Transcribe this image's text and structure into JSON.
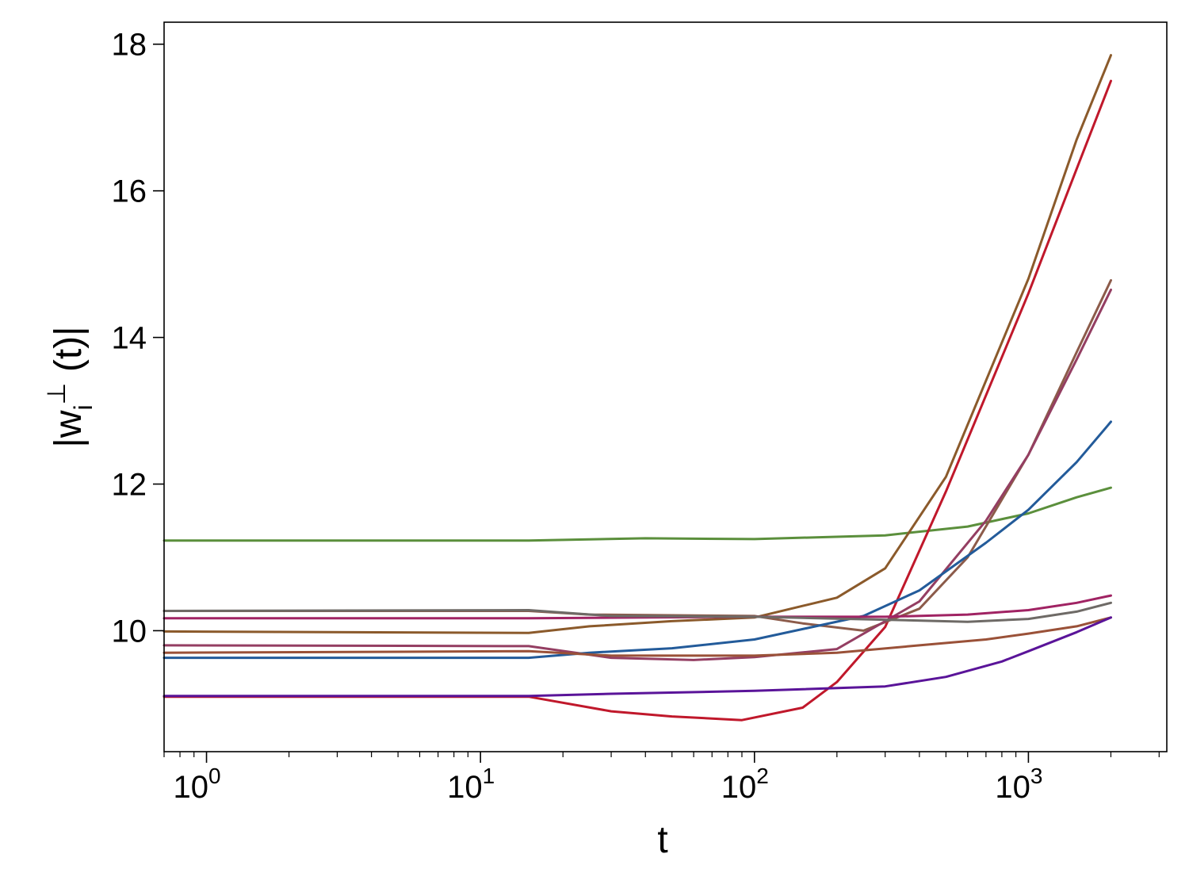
{
  "chart_data": {
    "type": "line",
    "title": "",
    "xlabel": "t",
    "ylabel": "|w_i^⊥ (t)|",
    "ylabel_main": "|w",
    "ylabel_sub": "i",
    "ylabel_sup": "⊥",
    "ylabel_rest": " (t)|",
    "x_scale": "log",
    "xlim": [
      0.7,
      3200
    ],
    "ylim": [
      8.35,
      18.3
    ],
    "grid": false,
    "legend": "none",
    "x_ticks": [
      {
        "value": 1,
        "base": "10",
        "exp": "0"
      },
      {
        "value": 10,
        "base": "10",
        "exp": "1"
      },
      {
        "value": 100,
        "base": "10",
        "exp": "2"
      },
      {
        "value": 1000,
        "base": "10",
        "exp": "3"
      }
    ],
    "y_ticks": [
      {
        "value": 10,
        "label": "10"
      },
      {
        "value": 12,
        "label": "12"
      },
      {
        "value": 14,
        "label": "14"
      },
      {
        "value": 16,
        "label": "16"
      },
      {
        "value": 18,
        "label": "18"
      }
    ],
    "series": [
      {
        "color": "#5b8f3c",
        "points": [
          [
            0.7,
            11.23
          ],
          [
            15,
            11.23
          ],
          [
            40,
            11.26
          ],
          [
            100,
            11.25
          ],
          [
            300,
            11.3
          ],
          [
            600,
            11.42
          ],
          [
            1000,
            11.6
          ],
          [
            1500,
            11.82
          ],
          [
            2000,
            11.95
          ]
        ]
      },
      {
        "color": "#8b5a2b",
        "points": [
          [
            0.7,
            9.99
          ],
          [
            15,
            9.97
          ],
          [
            25,
            10.06
          ],
          [
            50,
            10.13
          ],
          [
            100,
            10.18
          ],
          [
            200,
            10.45
          ],
          [
            300,
            10.85
          ],
          [
            500,
            12.1
          ],
          [
            1000,
            14.8
          ],
          [
            1500,
            16.7
          ],
          [
            2000,
            17.85
          ]
        ]
      },
      {
        "color": "#c0182b",
        "points": [
          [
            0.7,
            9.1
          ],
          [
            15,
            9.1
          ],
          [
            30,
            8.9
          ],
          [
            50,
            8.83
          ],
          [
            90,
            8.78
          ],
          [
            150,
            8.95
          ],
          [
            200,
            9.3
          ],
          [
            300,
            10.05
          ],
          [
            500,
            11.9
          ],
          [
            1000,
            14.6
          ],
          [
            1500,
            16.3
          ],
          [
            2000,
            17.5
          ]
        ]
      },
      {
        "color": "#8c5b4a",
        "points": [
          [
            0.7,
            10.27
          ],
          [
            15,
            10.27
          ],
          [
            25,
            10.22
          ],
          [
            100,
            10.2
          ],
          [
            150,
            10.1
          ],
          [
            250,
            10.0
          ],
          [
            400,
            10.3
          ],
          [
            600,
            11.0
          ],
          [
            1000,
            12.4
          ],
          [
            1500,
            13.8
          ],
          [
            2000,
            14.78
          ]
        ]
      },
      {
        "color": "#943e62",
        "points": [
          [
            0.7,
            9.8
          ],
          [
            15,
            9.79
          ],
          [
            30,
            9.63
          ],
          [
            60,
            9.6
          ],
          [
            100,
            9.64
          ],
          [
            200,
            9.75
          ],
          [
            400,
            10.4
          ],
          [
            700,
            11.5
          ],
          [
            1000,
            12.4
          ],
          [
            1500,
            13.7
          ],
          [
            2000,
            14.65
          ]
        ]
      },
      {
        "color": "#235b9a",
        "points": [
          [
            0.7,
            9.63
          ],
          [
            15,
            9.63
          ],
          [
            25,
            9.7
          ],
          [
            50,
            9.76
          ],
          [
            100,
            9.88
          ],
          [
            250,
            10.2
          ],
          [
            400,
            10.55
          ],
          [
            700,
            11.2
          ],
          [
            1000,
            11.65
          ],
          [
            1500,
            12.3
          ],
          [
            2000,
            12.85
          ]
        ]
      },
      {
        "color": "#a02363",
        "points": [
          [
            0.7,
            10.17
          ],
          [
            15,
            10.17
          ],
          [
            100,
            10.19
          ],
          [
            300,
            10.19
          ],
          [
            600,
            10.22
          ],
          [
            1000,
            10.28
          ],
          [
            1500,
            10.38
          ],
          [
            2000,
            10.48
          ]
        ]
      },
      {
        "color": "#6e6a66",
        "points": [
          [
            0.7,
            10.27
          ],
          [
            15,
            10.28
          ],
          [
            30,
            10.2
          ],
          [
            100,
            10.19
          ],
          [
            300,
            10.15
          ],
          [
            600,
            10.12
          ],
          [
            1000,
            10.16
          ],
          [
            1500,
            10.26
          ],
          [
            2000,
            10.38
          ]
        ]
      },
      {
        "color": "#9a5138",
        "points": [
          [
            0.7,
            9.7
          ],
          [
            15,
            9.72
          ],
          [
            30,
            9.66
          ],
          [
            100,
            9.66
          ],
          [
            200,
            9.7
          ],
          [
            400,
            9.8
          ],
          [
            700,
            9.88
          ],
          [
            1000,
            9.96
          ],
          [
            1500,
            10.06
          ],
          [
            2000,
            10.18
          ]
        ]
      },
      {
        "color": "#5a1499",
        "points": [
          [
            0.7,
            9.11
          ],
          [
            15,
            9.11
          ],
          [
            30,
            9.14
          ],
          [
            100,
            9.18
          ],
          [
            300,
            9.24
          ],
          [
            500,
            9.37
          ],
          [
            800,
            9.58
          ],
          [
            1000,
            9.72
          ],
          [
            1500,
            9.98
          ],
          [
            2000,
            10.18
          ]
        ]
      }
    ]
  }
}
